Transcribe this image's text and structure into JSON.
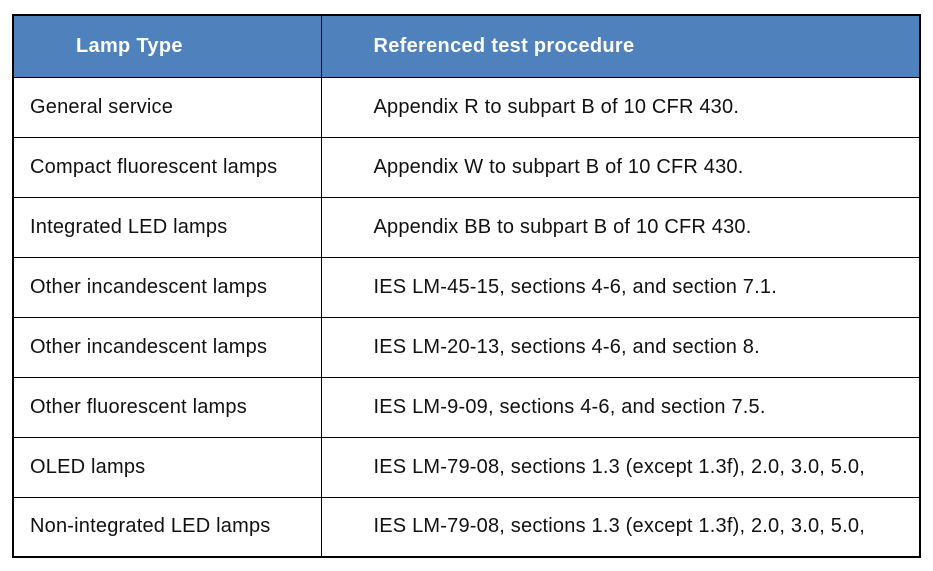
{
  "table": {
    "headers": [
      "Lamp Type",
      "Referenced test procedure"
    ],
    "rows": [
      [
        "General service",
        "Appendix R to subpart B of 10 CFR 430."
      ],
      [
        "Compact fluorescent lamps",
        "Appendix W to subpart B of 10 CFR 430."
      ],
      [
        "Integrated LED lamps",
        "Appendix BB to subpart B of 10 CFR 430."
      ],
      [
        "Other incandescent lamps",
        "IES LM-45-15, sections 4-6, and section 7.1."
      ],
      [
        "Other incandescent lamps",
        "IES LM-20-13, sections 4-6, and section 8."
      ],
      [
        "Other fluorescent lamps",
        "IES LM-9-09, sections 4-6, and section 7.5."
      ],
      [
        "OLED lamps",
        "IES LM-79-08, sections 1.3 (except 1.3f), 2.0, 3.0, 5.0,"
      ],
      [
        "Non-integrated LED lamps",
        "IES LM-79-08, sections 1.3 (except 1.3f), 2.0, 3.0, 5.0,"
      ]
    ],
    "colors": {
      "header_bg": "#4f81bd",
      "header_text": "#ffffff",
      "body_text": "#111111",
      "border": "#000000",
      "page_bg": "#ffffff"
    }
  }
}
